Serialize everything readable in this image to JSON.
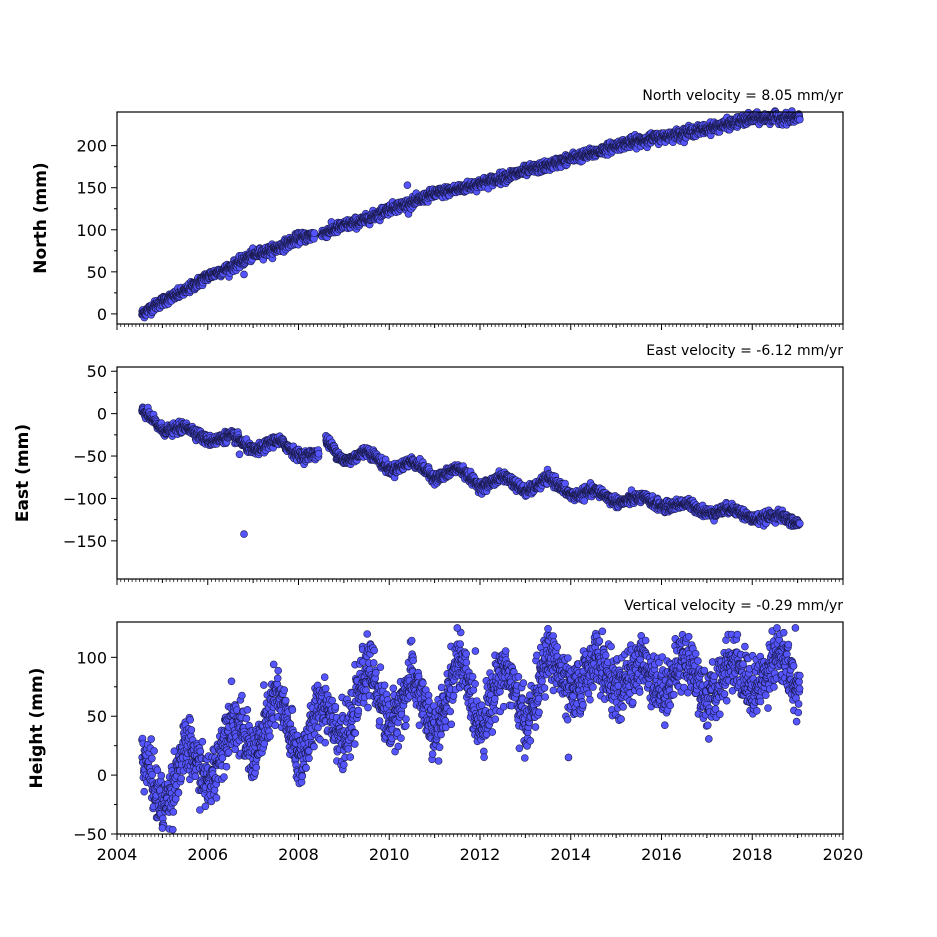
{
  "chart_data": [
    {
      "type": "scatter",
      "title": "North velocity = 8.05 mm/yr",
      "ylabel": "North (mm)",
      "xlim": [
        2004,
        2020
      ],
      "ylim": [
        -12,
        240
      ],
      "yticks": [
        0,
        50,
        100,
        150,
        200
      ],
      "ytick_labels": [
        "0",
        "50",
        "100",
        "150",
        "200"
      ],
      "marker_color": "#5555ff",
      "marker_edge": "#1a1a4a",
      "x_range": [
        2004.55,
        2019.05
      ],
      "series": [
        {
          "x": [
            2004.55,
            2005.0,
            2005.5,
            2006.0,
            2006.5,
            2007.0,
            2007.5,
            2008.0,
            2008.5,
            2009.0,
            2009.5,
            2010.0,
            2010.5,
            2011.0,
            2011.5,
            2012.0,
            2012.5,
            2013.0,
            2013.5,
            2014.0,
            2014.5,
            2015.0,
            2015.5,
            2016.0,
            2016.5,
            2017.0,
            2017.5,
            2018.0,
            2018.5,
            2019.05
          ],
          "y": [
            0,
            15,
            27,
            45,
            55,
            70,
            77,
            90,
            95,
            105,
            112,
            125,
            132,
            143,
            148,
            155,
            162,
            170,
            176,
            185,
            191,
            200,
            206,
            210,
            215,
            220,
            226,
            232,
            233,
            232
          ],
          "noise": 3
        }
      ],
      "outliers": [
        {
          "x": 2010.4,
          "y": 153
        },
        {
          "x": 2006.8,
          "y": 47
        }
      ]
    },
    {
      "type": "scatter",
      "title": "East velocity = -6.12 mm/yr",
      "ylabel": "East (mm)",
      "xlim": [
        2004,
        2020
      ],
      "ylim": [
        -195,
        55
      ],
      "yticks": [
        -150,
        -100,
        -50,
        0,
        50
      ],
      "ytick_labels": [
        "−150",
        "−100",
        "−50",
        "0",
        "50"
      ],
      "marker_color": "#5555ff",
      "marker_edge": "#1a1a4a",
      "x_range": [
        2004.55,
        2019.05
      ],
      "series": [
        {
          "x": [
            2004.55,
            2005.0,
            2005.5,
            2006.0,
            2006.5,
            2007.0,
            2007.5,
            2008.0,
            2008.5,
            2008.6,
            2009.0,
            2009.5,
            2010.0,
            2010.5,
            2011.0,
            2011.5,
            2012.0,
            2012.5,
            2013.0,
            2013.5,
            2014.0,
            2014.5,
            2015.0,
            2015.5,
            2016.0,
            2016.5,
            2017.0,
            2017.5,
            2018.0,
            2018.5,
            2019.05
          ],
          "y": [
            0,
            -15,
            -20,
            -28,
            -30,
            -40,
            -35,
            -45,
            -50,
            -35,
            -52,
            -48,
            -62,
            -60,
            -72,
            -68,
            -82,
            -78,
            -88,
            -80,
            -92,
            -95,
            -100,
            -103,
            -105,
            -110,
            -113,
            -116,
            -120,
            -124,
            -126
          ],
          "noise": 3,
          "seasonal_amplitude": 8
        }
      ],
      "outliers": [
        {
          "x": 2006.8,
          "y": -142
        },
        {
          "x": 2006.7,
          "y": -48
        }
      ]
    },
    {
      "type": "scatter",
      "title": "Vertical velocity = -0.29 mm/yr",
      "ylabel": "Height (mm)",
      "xlabel": "",
      "xlim": [
        2004,
        2020
      ],
      "ylim": [
        -50,
        130
      ],
      "yticks": [
        -50,
        0,
        50,
        100
      ],
      "ytick_labels": [
        "−50",
        "0",
        "50",
        "100"
      ],
      "xticks": [
        2004,
        2006,
        2008,
        2010,
        2012,
        2014,
        2016,
        2018,
        2020
      ],
      "xtick_labels": [
        "2004",
        "2006",
        "2008",
        "2010",
        "2012",
        "2014",
        "2016",
        "2018",
        "2020"
      ],
      "marker_color": "#5555ff",
      "marker_edge": "#1a1a4a",
      "x_range": [
        2004.55,
        2019.05
      ],
      "series": [
        {
          "x": [
            2004.55,
            2005.0,
            2005.5,
            2006.0,
            2006.5,
            2007.0,
            2007.5,
            2008.0,
            2008.5,
            2009.0,
            2009.5,
            2010.0,
            2010.5,
            2011.0,
            2011.5,
            2012.0,
            2012.5,
            2013.0,
            2013.5,
            2014.0,
            2014.5,
            2015.0,
            2015.5,
            2016.0,
            2016.5,
            2017.0,
            2017.5,
            2018.0,
            2018.5,
            2019.05
          ],
          "y": [
            5,
            -15,
            10,
            5,
            35,
            30,
            55,
            25,
            50,
            40,
            80,
            55,
            70,
            45,
            85,
            55,
            80,
            55,
            90,
            80,
            85,
            85,
            82,
            85,
            88,
            75,
            85,
            85,
            90,
            85
          ],
          "noise": 12,
          "seasonal_amplitude": 25
        }
      ],
      "outliers": [
        {
          "x": 2005.0,
          "y": -45
        },
        {
          "x": 2011.5,
          "y": 125
        },
        {
          "x": 2018.95,
          "y": 125
        },
        {
          "x": 2013.95,
          "y": 15
        }
      ]
    }
  ]
}
